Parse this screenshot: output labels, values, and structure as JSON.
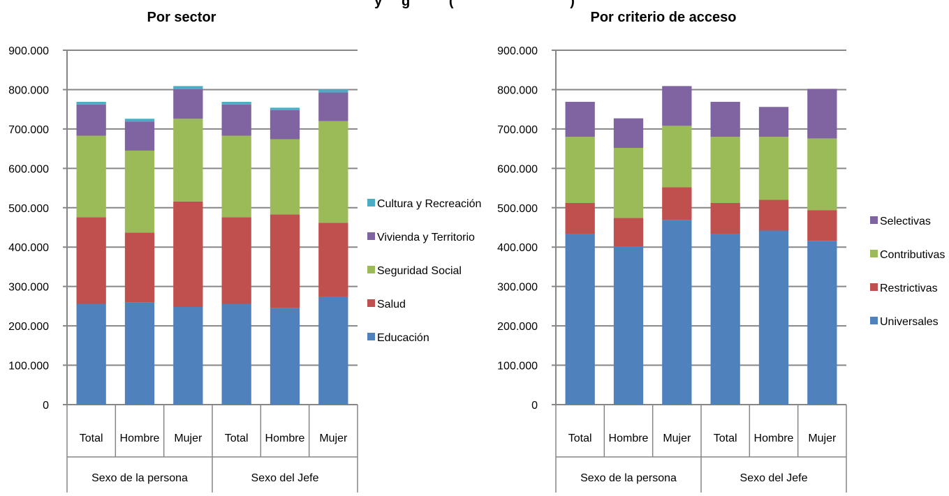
{
  "page": {
    "cut_title": "y     g          (                              )"
  },
  "chart_data": [
    {
      "type": "bar",
      "stacked": true,
      "title": "Por sector",
      "categories": [
        "Total",
        "Hombre",
        "Mujer",
        "Total",
        "Hombre",
        "Mujer"
      ],
      "groups": [
        {
          "label": "Sexo de la persona",
          "span": [
            0,
            3
          ]
        },
        {
          "label": "Sexo del Jefe",
          "span": [
            3,
            6
          ]
        }
      ],
      "ylim": [
        0,
        900000
      ],
      "yticks": [
        0,
        100000,
        200000,
        300000,
        400000,
        500000,
        600000,
        700000,
        800000,
        900000
      ],
      "ytick_labels": [
        "0",
        "100.000",
        "200.000",
        "300.000",
        "400.000",
        "500.000",
        "600.000",
        "700.000",
        "800.000",
        "900.000"
      ],
      "grid": true,
      "legend_position": "right",
      "series": [
        {
          "name": "Educación",
          "color": "#4F81BD",
          "values": [
            256000,
            259000,
            248000,
            256000,
            245000,
            273000
          ]
        },
        {
          "name": "Salud",
          "color": "#C0504D",
          "values": [
            220000,
            178000,
            268000,
            220000,
            238000,
            189000
          ]
        },
        {
          "name": "Seguridad Social",
          "color": "#9BBB59",
          "values": [
            207000,
            208000,
            210000,
            207000,
            191000,
            258000
          ]
        },
        {
          "name": "Vivienda y Territorio",
          "color": "#8064A2",
          "values": [
            79000,
            74000,
            75000,
            79000,
            74000,
            73000
          ]
        },
        {
          "name": "Cultura y Recreación",
          "color": "#4BACC6",
          "values": [
            7000,
            7000,
            8000,
            7000,
            6000,
            7000
          ]
        }
      ]
    },
    {
      "type": "bar",
      "stacked": true,
      "title": "Por criterio de acceso",
      "categories": [
        "Total",
        "Hombre",
        "Mujer",
        "Total",
        "Hombre",
        "Mujer"
      ],
      "groups": [
        {
          "label": "Sexo de la persona",
          "span": [
            0,
            3
          ]
        },
        {
          "label": "Sexo del Jefe",
          "span": [
            3,
            6
          ]
        }
      ],
      "ylim": [
        0,
        900000
      ],
      "yticks": [
        0,
        100000,
        200000,
        300000,
        400000,
        500000,
        600000,
        700000,
        800000,
        900000
      ],
      "ytick_labels": [
        "0",
        "100.000",
        "200.000",
        "300.000",
        "400.000",
        "500.000",
        "600.000",
        "700.000",
        "800.000",
        "900.000"
      ],
      "grid": true,
      "legend_position": "right",
      "series": [
        {
          "name": "Universales",
          "color": "#4F81BD",
          "values": [
            434000,
            402000,
            469000,
            434000,
            442000,
            416000
          ]
        },
        {
          "name": "Restrictivas",
          "color": "#C0504D",
          "values": [
            78000,
            72000,
            83000,
            78000,
            78000,
            78000
          ]
        },
        {
          "name": "Contributivas",
          "color": "#9BBB59",
          "values": [
            168000,
            178000,
            156000,
            168000,
            160000,
            182000
          ]
        },
        {
          "name": "Selectivas",
          "color": "#8064A2",
          "values": [
            89000,
            75000,
            101000,
            89000,
            76000,
            126000
          ]
        }
      ]
    }
  ]
}
